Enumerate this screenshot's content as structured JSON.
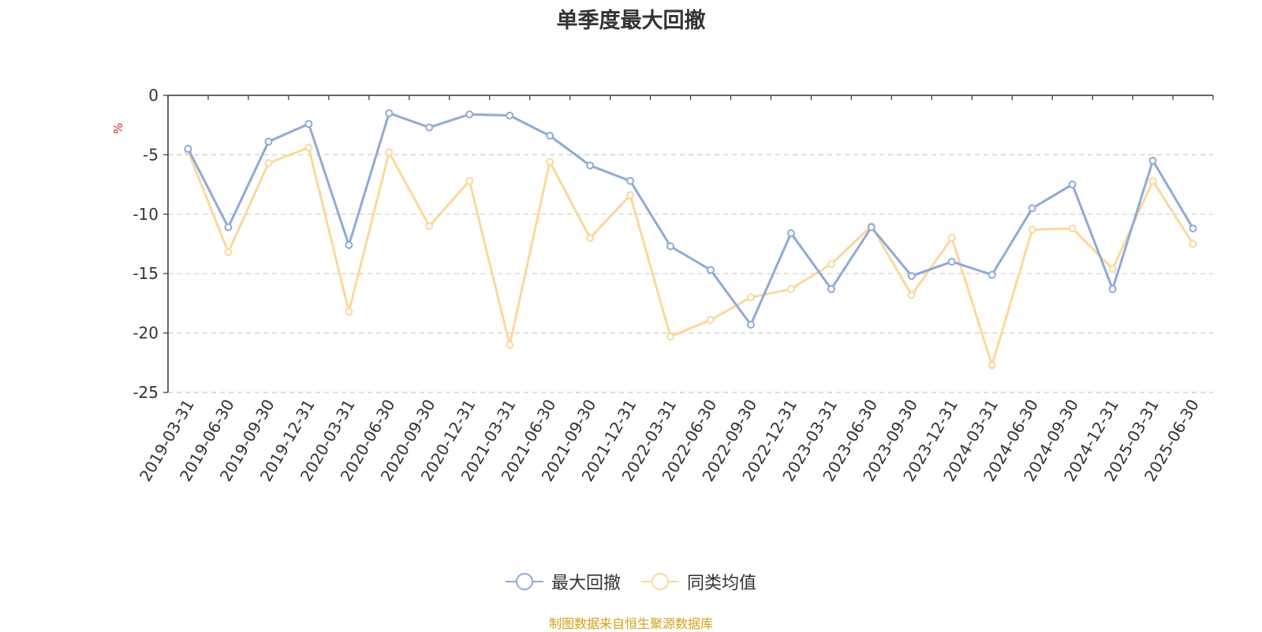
{
  "chart_data": {
    "type": "line",
    "title": "单季度最大回撤",
    "ylabel": "%",
    "xlabel": "",
    "ylim": [
      -25,
      0
    ],
    "yticks": [
      0,
      -5,
      -10,
      -15,
      -20,
      -25
    ],
    "grid": true,
    "legend_position": "bottom",
    "categories": [
      "2019-03-31",
      "2019-06-30",
      "2019-09-30",
      "2019-12-31",
      "2020-03-31",
      "2020-06-30",
      "2020-09-30",
      "2020-12-31",
      "2021-03-31",
      "2021-06-30",
      "2021-09-30",
      "2021-12-31",
      "2022-03-31",
      "2022-06-30",
      "2022-09-30",
      "2022-12-31",
      "2023-03-31",
      "2023-06-30",
      "2023-09-30",
      "2023-12-31",
      "2024-03-31",
      "2024-06-30",
      "2024-09-30",
      "2024-12-31",
      "2025-03-31",
      "2025-06-30"
    ],
    "series": [
      {
        "name": "最大回撤",
        "color": "#8eaad8",
        "values": [
          -4.5,
          -11.1,
          -3.9,
          -2.4,
          -12.6,
          -1.5,
          -2.7,
          -1.6,
          -1.7,
          -3.4,
          -5.9,
          -7.2,
          -12.7,
          -14.7,
          -19.3,
          -11.6,
          -16.3,
          -11.1,
          -15.2,
          -14.0,
          -15.1,
          -9.5,
          -7.5,
          -16.3,
          -5.5,
          -11.2
        ]
      },
      {
        "name": "同类均值",
        "color": "#fbd89b",
        "values": [
          -4.7,
          -13.2,
          -5.7,
          -4.4,
          -18.2,
          -4.8,
          -11.0,
          -7.2,
          -21.0,
          -5.6,
          -12.0,
          -8.4,
          -20.3,
          -18.9,
          -17.0,
          -16.3,
          -14.2,
          -11.0,
          -16.8,
          -12.0,
          -22.7,
          -11.3,
          -11.2,
          -14.6,
          -7.2,
          -12.5
        ]
      }
    ]
  },
  "footer": "制图数据来自恒生聚源数据库"
}
